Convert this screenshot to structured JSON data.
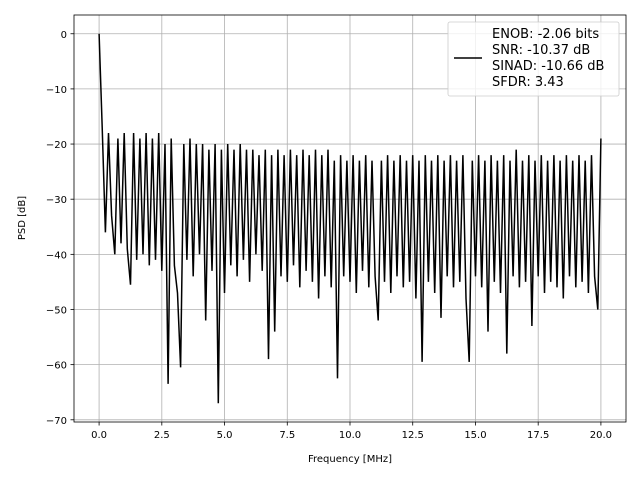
{
  "chart_data": {
    "type": "line",
    "title": "",
    "xlabel": "Frequency [MHz]",
    "ylabel": "PSD [dB]",
    "xlim": [
      -1,
      21
    ],
    "ylim": [
      -70.4,
      3.4
    ],
    "xticks": [
      0,
      2.5,
      5,
      7.5,
      10,
      12.5,
      15,
      17.5,
      20
    ],
    "xtick_labels": [
      "0.0",
      "2.5",
      "5.0",
      "7.5",
      "10.0",
      "12.5",
      "15.0",
      "17.5",
      "20.0"
    ],
    "yticks": [
      0,
      -10,
      -20,
      -30,
      -40,
      -50,
      -60,
      -70
    ],
    "ytick_labels": [
      "0",
      "−10",
      "−20",
      "−30",
      "−40",
      "−50",
      "−60",
      "−70"
    ],
    "grid": true,
    "legend_placement": "upper-right",
    "legend": [
      "ENOB: -2.06 bits",
      "SNR: -10.37 dB",
      "SINAD: -10.66 dB",
      "SFDR: 3.43"
    ],
    "line_color": "#000000",
    "grid_color": "#b0b0b0",
    "series": [
      {
        "x_start": 0,
        "x_step": 0.125,
        "values": [
          0,
          -17,
          -36,
          -18,
          -33,
          -40,
          -19,
          -38,
          -18,
          -39,
          -45.5,
          -18,
          -41,
          -19,
          -40,
          -18,
          -42,
          -19,
          -41,
          -18,
          -43,
          -20,
          -63.5,
          -19,
          -42,
          -47,
          -60.5,
          -20,
          -41,
          -19,
          -44,
          -20,
          -40,
          -20,
          -52,
          -21,
          -43,
          -20,
          -67,
          -21,
          -47,
          -20,
          -42,
          -21,
          -44,
          -20,
          -41,
          -21,
          -45,
          -21,
          -40,
          -22,
          -43,
          -21,
          -59,
          -22,
          -54,
          -21,
          -44,
          -22,
          -45,
          -21,
          -42,
          -22,
          -46,
          -21,
          -43,
          -22,
          -45,
          -21,
          -48,
          -22,
          -44,
          -21,
          -46,
          -23,
          -62.5,
          -22,
          -44,
          -23,
          -45,
          -22,
          -47,
          -23,
          -43,
          -22,
          -46,
          -23,
          -44,
          -52,
          -23,
          -45,
          -22,
          -47,
          -23,
          -44,
          -22,
          -46,
          -23,
          -45,
          -22,
          -48,
          -23,
          -59.5,
          -22,
          -45,
          -23,
          -47,
          -22,
          -51.5,
          -23,
          -44,
          -22,
          -46,
          -23,
          -45,
          -22,
          -48,
          -59.5,
          -23,
          -44,
          -22,
          -46,
          -23,
          -54,
          -22,
          -45,
          -23,
          -47,
          -22,
          -58,
          -23,
          -44,
          -21,
          -46,
          -23,
          -45,
          -22,
          -53,
          -23,
          -44,
          -22,
          -47,
          -23,
          -45,
          -22,
          -46,
          -23,
          -48,
          -22,
          -44,
          -23,
          -46,
          -22,
          -45,
          -23,
          -47,
          -22,
          -44,
          -50,
          -19
        ]
      }
    ]
  }
}
